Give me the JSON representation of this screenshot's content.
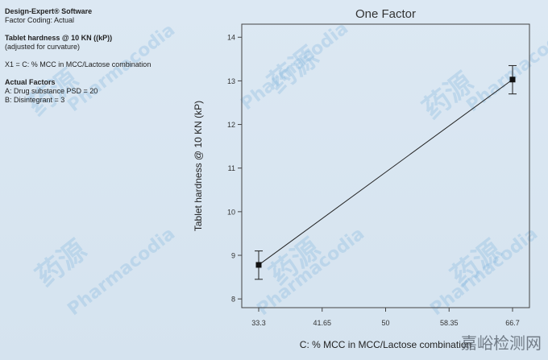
{
  "left_panel": {
    "software": "Design-Expert® Software",
    "factor_coding": "Factor Coding: Actual",
    "response": "Tablet hardness @ 10 KN ((kP))",
    "response_note": "(adjusted for curvature)",
    "x1": "X1 = C: % MCC in MCC/Lactose combination",
    "actual_factors_title": "Actual Factors",
    "factor_a": "A: Drug substance PSD = 20",
    "factor_b": "B: Disintegrant = 3"
  },
  "watermarks": {
    "chinese": "药源",
    "english": "Pharmacodia"
  },
  "corner_mark": "嘉峪检测网",
  "chart_data": {
    "type": "line",
    "title": "One Factor",
    "xlabel": "C: % MCC in MCC/Lactose combination",
    "ylabel": "Tablet hardness @ 10 KN (kP)",
    "x_ticks": [
      "33.3",
      "41.65",
      "50",
      "58.35",
      "66.7"
    ],
    "y_ticks": [
      "8",
      "9",
      "10",
      "11",
      "12",
      "13",
      "14"
    ],
    "xlim": [
      33.3,
      66.7
    ],
    "ylim": [
      7.8,
      14.3
    ],
    "series": [
      {
        "points": [
          {
            "x": 33.3,
            "y": 8.78,
            "err_low": 8.45,
            "err_high": 9.1
          },
          {
            "x": 66.7,
            "y": 13.03,
            "err_low": 12.7,
            "err_high": 13.35
          }
        ]
      }
    ],
    "grid": false
  }
}
